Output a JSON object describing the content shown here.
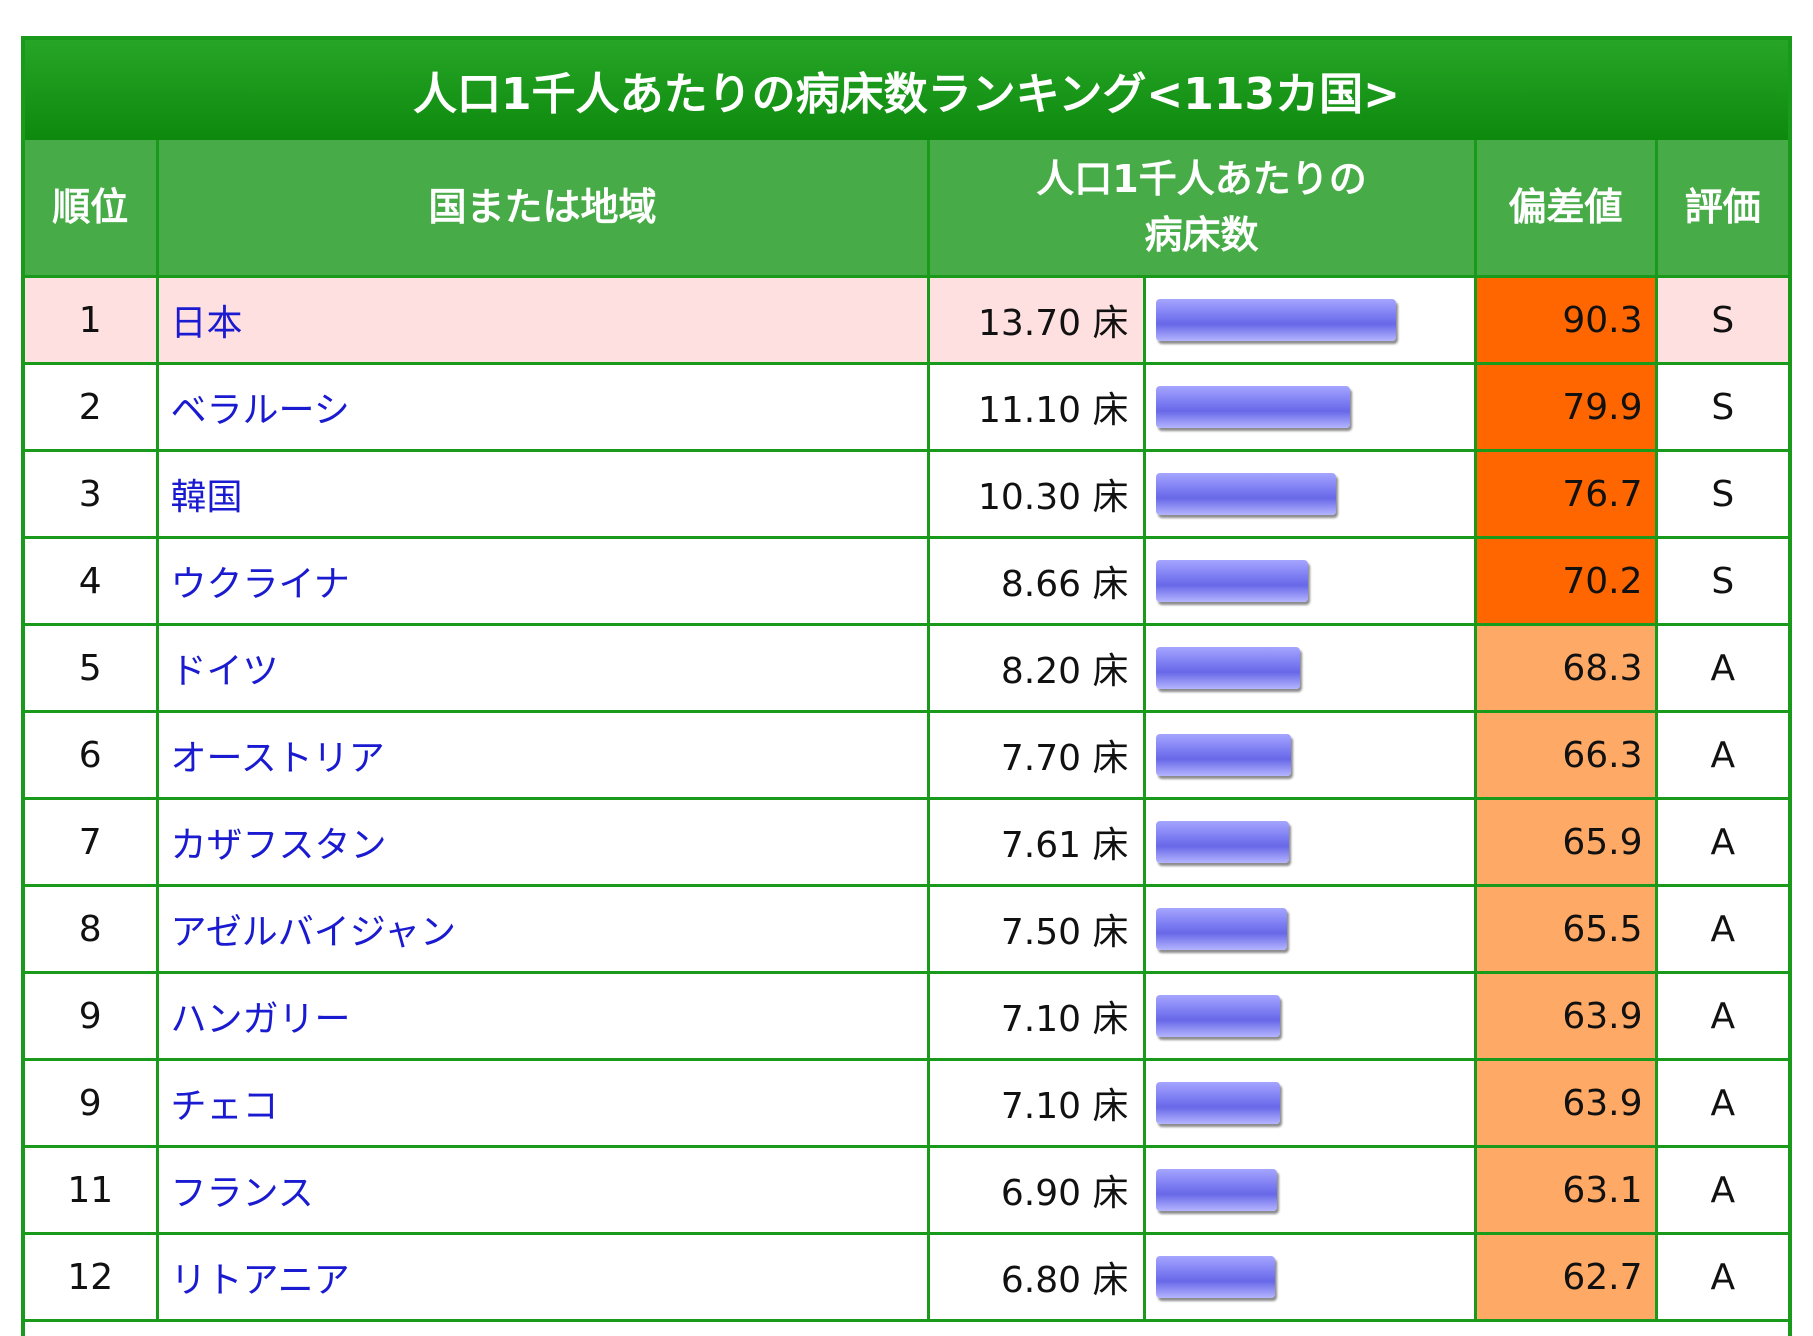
{
  "title": "人口1千人あたりの病床数ランキング<113カ国>",
  "headers": {
    "rank": "順位",
    "country": "国または地域",
    "beds_line1": "人口1千人あたりの",
    "beds_line2": "病床数",
    "deviation": "偏差値",
    "grade": "評価"
  },
  "unit": "床",
  "colors": {
    "tier_s": "#ff6600",
    "tier_a": "#ffa966",
    "highlight_row": "#ffe0e0",
    "border": "#1a9a1a",
    "bar": "#7b7bf2"
  },
  "bar_max": 13.7,
  "rows": [
    {
      "rank": "1",
      "country": "日本",
      "beds": 13.7,
      "beds_text": "13.70",
      "deviation": "90.3",
      "grade": "S",
      "highlight": true
    },
    {
      "rank": "2",
      "country": "ベラルーシ",
      "beds": 11.1,
      "beds_text": "11.10",
      "deviation": "79.9",
      "grade": "S",
      "highlight": false
    },
    {
      "rank": "3",
      "country": "韓国",
      "beds": 10.3,
      "beds_text": "10.30",
      "deviation": "76.7",
      "grade": "S",
      "highlight": false
    },
    {
      "rank": "4",
      "country": "ウクライナ",
      "beds": 8.66,
      "beds_text": "8.66",
      "deviation": "70.2",
      "grade": "S",
      "highlight": false
    },
    {
      "rank": "5",
      "country": "ドイツ",
      "beds": 8.2,
      "beds_text": "8.20",
      "deviation": "68.3",
      "grade": "A",
      "highlight": false
    },
    {
      "rank": "6",
      "country": "オーストリア",
      "beds": 7.7,
      "beds_text": "7.70",
      "deviation": "66.3",
      "grade": "A",
      "highlight": false
    },
    {
      "rank": "7",
      "country": "カザフスタン",
      "beds": 7.61,
      "beds_text": "7.61",
      "deviation": "65.9",
      "grade": "A",
      "highlight": false
    },
    {
      "rank": "8",
      "country": "アゼルバイジャン",
      "beds": 7.5,
      "beds_text": "7.50",
      "deviation": "65.5",
      "grade": "A",
      "highlight": false
    },
    {
      "rank": "9",
      "country": "ハンガリー",
      "beds": 7.1,
      "beds_text": "7.10",
      "deviation": "63.9",
      "grade": "A",
      "highlight": false
    },
    {
      "rank": "9",
      "country": "チェコ",
      "beds": 7.1,
      "beds_text": "7.10",
      "deviation": "63.9",
      "grade": "A",
      "highlight": false
    },
    {
      "rank": "11",
      "country": "フランス",
      "beds": 6.9,
      "beds_text": "6.90",
      "deviation": "63.1",
      "grade": "A",
      "highlight": false
    },
    {
      "rank": "12",
      "country": "リトアニア",
      "beds": 6.8,
      "beds_text": "6.80",
      "deviation": "62.7",
      "grade": "A",
      "highlight": false
    }
  ]
}
